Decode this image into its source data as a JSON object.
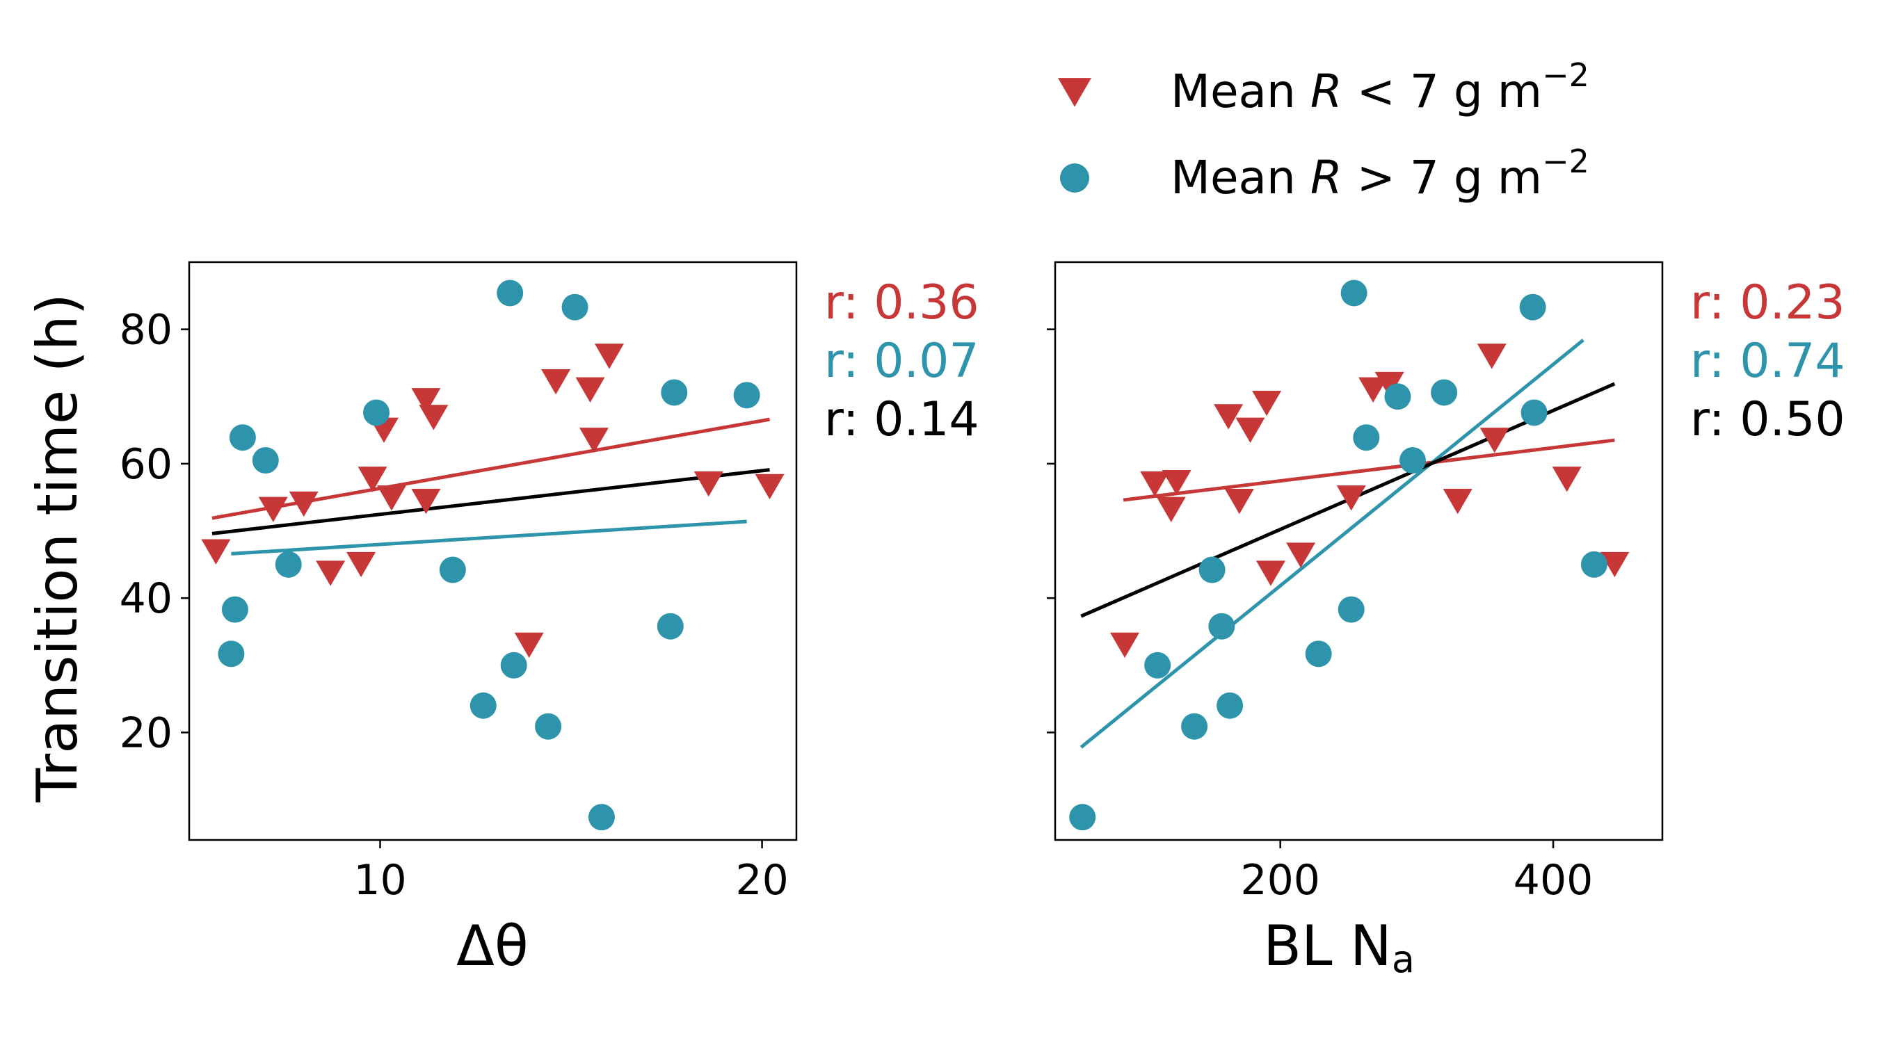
{
  "colors": {
    "low": "#c83737",
    "high": "#2e94ac",
    "all": "#000000"
  },
  "legend": {
    "items": [
      {
        "marker": "triangle-down",
        "color": "#c83737",
        "prefix": "Mean ",
        "var": "R",
        "suffix": " < 7 g m",
        "sup": "−2"
      },
      {
        "marker": "circle",
        "color": "#2e94ac",
        "prefix": "Mean ",
        "var": "R",
        "suffix": " > 7 g m",
        "sup": "−2"
      }
    ]
  },
  "chart_data": [
    {
      "type": "scatter",
      "ylabel": "Transition time (h)",
      "xlabel": "Δθ",
      "xlim": [
        5.0,
        20.9
      ],
      "ylim": [
        4.0,
        90.0
      ],
      "xticks": [
        10,
        20
      ],
      "yticks": [
        20,
        40,
        60,
        80
      ],
      "correlations": [
        {
          "label": "r: 0.36",
          "color": "#c83737"
        },
        {
          "label": "r: 0.07",
          "color": "#2e94ac"
        },
        {
          "label": "r: 0.14",
          "color": "#000000"
        }
      ],
      "fits": [
        {
          "group": "low",
          "x": [
            5.6,
            20.2
          ],
          "y": [
            51.9,
            66.6
          ]
        },
        {
          "group": "high",
          "x": [
            6.1,
            19.6
          ],
          "y": [
            46.6,
            51.4
          ]
        },
        {
          "group": "all",
          "x": [
            5.6,
            20.2
          ],
          "y": [
            49.6,
            59.1
          ]
        }
      ],
      "series": [
        {
          "name": "Mean R < 7 g m−2",
          "marker": "triangle-down",
          "points": [
            [
              5.7,
              47.5
            ],
            [
              7.2,
              53.8
            ],
            [
              8.0,
              54.6
            ],
            [
              8.7,
              44.3
            ],
            [
              9.5,
              45.6
            ],
            [
              9.8,
              58.3
            ],
            [
              10.1,
              65.6
            ],
            [
              10.3,
              55.5
            ],
            [
              11.2,
              70.0
            ],
            [
              11.2,
              55.0
            ],
            [
              11.4,
              67.5
            ],
            [
              13.9,
              33.6
            ],
            [
              14.6,
              72.8
            ],
            [
              15.5,
              71.6
            ],
            [
              15.6,
              64.1
            ],
            [
              16.0,
              76.6
            ],
            [
              18.6,
              57.6
            ],
            [
              20.2,
              57.2
            ]
          ]
        },
        {
          "name": "Mean R > 7 g m−2",
          "marker": "circle",
          "points": [
            [
              6.1,
              31.7
            ],
            [
              6.2,
              38.3
            ],
            [
              6.4,
              63.9
            ],
            [
              7.0,
              60.5
            ],
            [
              7.6,
              45.0
            ],
            [
              9.9,
              67.6
            ],
            [
              11.9,
              44.2
            ],
            [
              12.7,
              24.0
            ],
            [
              13.4,
              85.4
            ],
            [
              13.5,
              30.0
            ],
            [
              14.4,
              20.9
            ],
            [
              15.1,
              83.3
            ],
            [
              15.8,
              7.4
            ],
            [
              17.6,
              35.8
            ],
            [
              17.7,
              70.6
            ],
            [
              19.6,
              70.2
            ]
          ]
        }
      ]
    },
    {
      "type": "scatter",
      "xlabel": "BL N",
      "xlabel_sub": "a",
      "xlim": [
        35,
        480
      ],
      "ylim": [
        4.0,
        90.0
      ],
      "xticks": [
        200,
        400
      ],
      "yticks": [
        20,
        40,
        60,
        80
      ],
      "correlations": [
        {
          "label": "r: 0.23",
          "color": "#c83737"
        },
        {
          "label": "r: 0.74",
          "color": "#2e94ac"
        },
        {
          "label": "r: 0.50",
          "color": "#000000"
        }
      ],
      "fits": [
        {
          "group": "low",
          "x": [
            85,
            445
          ],
          "y": [
            54.6,
            63.5
          ]
        },
        {
          "group": "high",
          "x": [
            54,
            422
          ],
          "y": [
            17.8,
            78.4
          ]
        },
        {
          "group": "all",
          "x": [
            54,
            445
          ],
          "y": [
            37.3,
            71.9
          ]
        }
      ],
      "series": [
        {
          "name": "Mean R < 7 g m−2",
          "marker": "triangle-down",
          "points": [
            [
              86,
              33.6
            ],
            [
              108,
              57.6
            ],
            [
              120,
              53.8
            ],
            [
              124,
              57.8
            ],
            [
              162,
              67.6
            ],
            [
              170,
              55.0
            ],
            [
              178,
              65.6
            ],
            [
              190,
              69.6
            ],
            [
              193,
              44.3
            ],
            [
              215,
              47.0
            ],
            [
              252,
              55.5
            ],
            [
              268,
              71.6
            ],
            [
              280,
              72.4
            ],
            [
              330,
              55.0
            ],
            [
              355,
              76.6
            ],
            [
              357,
              64.1
            ],
            [
              410,
              58.3
            ],
            [
              445,
              45.6
            ]
          ]
        },
        {
          "name": "Mean R > 7 g m−2",
          "marker": "circle",
          "points": [
            [
              55,
              7.4
            ],
            [
              110,
              30.0
            ],
            [
              137,
              20.9
            ],
            [
              150,
              44.2
            ],
            [
              157,
              35.8
            ],
            [
              163,
              24.0
            ],
            [
              228,
              31.7
            ],
            [
              252,
              38.3
            ],
            [
              254,
              85.4
            ],
            [
              263,
              63.9
            ],
            [
              286,
              70.0
            ],
            [
              297,
              60.5
            ],
            [
              320,
              70.6
            ],
            [
              385,
              83.3
            ],
            [
              386,
              67.6
            ],
            [
              430,
              45.0
            ]
          ]
        }
      ]
    }
  ]
}
